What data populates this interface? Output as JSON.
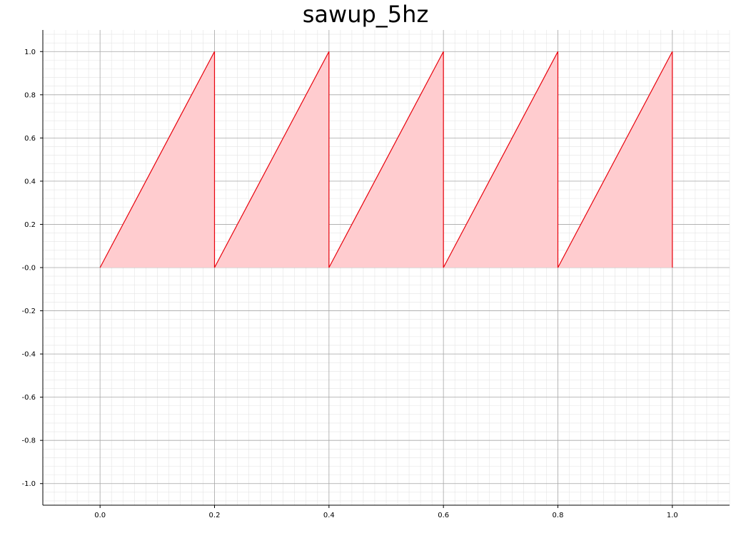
{
  "chart_data": {
    "type": "area",
    "title": "sawup_5hz",
    "xlabel": "",
    "ylabel": "",
    "xlim": [
      -0.1,
      1.1
    ],
    "ylim": [
      -1.1,
      1.1
    ],
    "x_ticks": [
      0.0,
      0.2,
      0.4,
      0.6,
      0.8,
      1.0
    ],
    "y_ticks": [
      1.0,
      0.8,
      0.6,
      0.4,
      0.2,
      0.0,
      -0.2,
      -0.4,
      -0.6,
      -0.8,
      -1.0
    ],
    "x_tick_labels": [
      "0.0",
      "0.2",
      "0.4",
      "0.6",
      "0.8",
      "1.0"
    ],
    "y_tick_labels": [
      "1.0",
      "0.8",
      "0.6",
      "0.4",
      "0.2",
      "-0.0",
      "-0.2",
      "-0.4",
      "-0.6",
      "-0.8",
      "-1.0"
    ],
    "grid": true,
    "minor_grid": true,
    "series": [
      {
        "color": "#e8000b",
        "fill_color": "#ffcccf",
        "points": [
          [
            0.0,
            0.0
          ],
          [
            0.2,
            1.0
          ],
          [
            0.2,
            0.0
          ],
          [
            0.4,
            1.0
          ],
          [
            0.4,
            0.0
          ],
          [
            0.6,
            1.0
          ],
          [
            0.6,
            0.0
          ],
          [
            0.8,
            1.0
          ],
          [
            0.8,
            0.0
          ],
          [
            1.0,
            1.0
          ],
          [
            1.0,
            0.0
          ]
        ]
      }
    ]
  }
}
